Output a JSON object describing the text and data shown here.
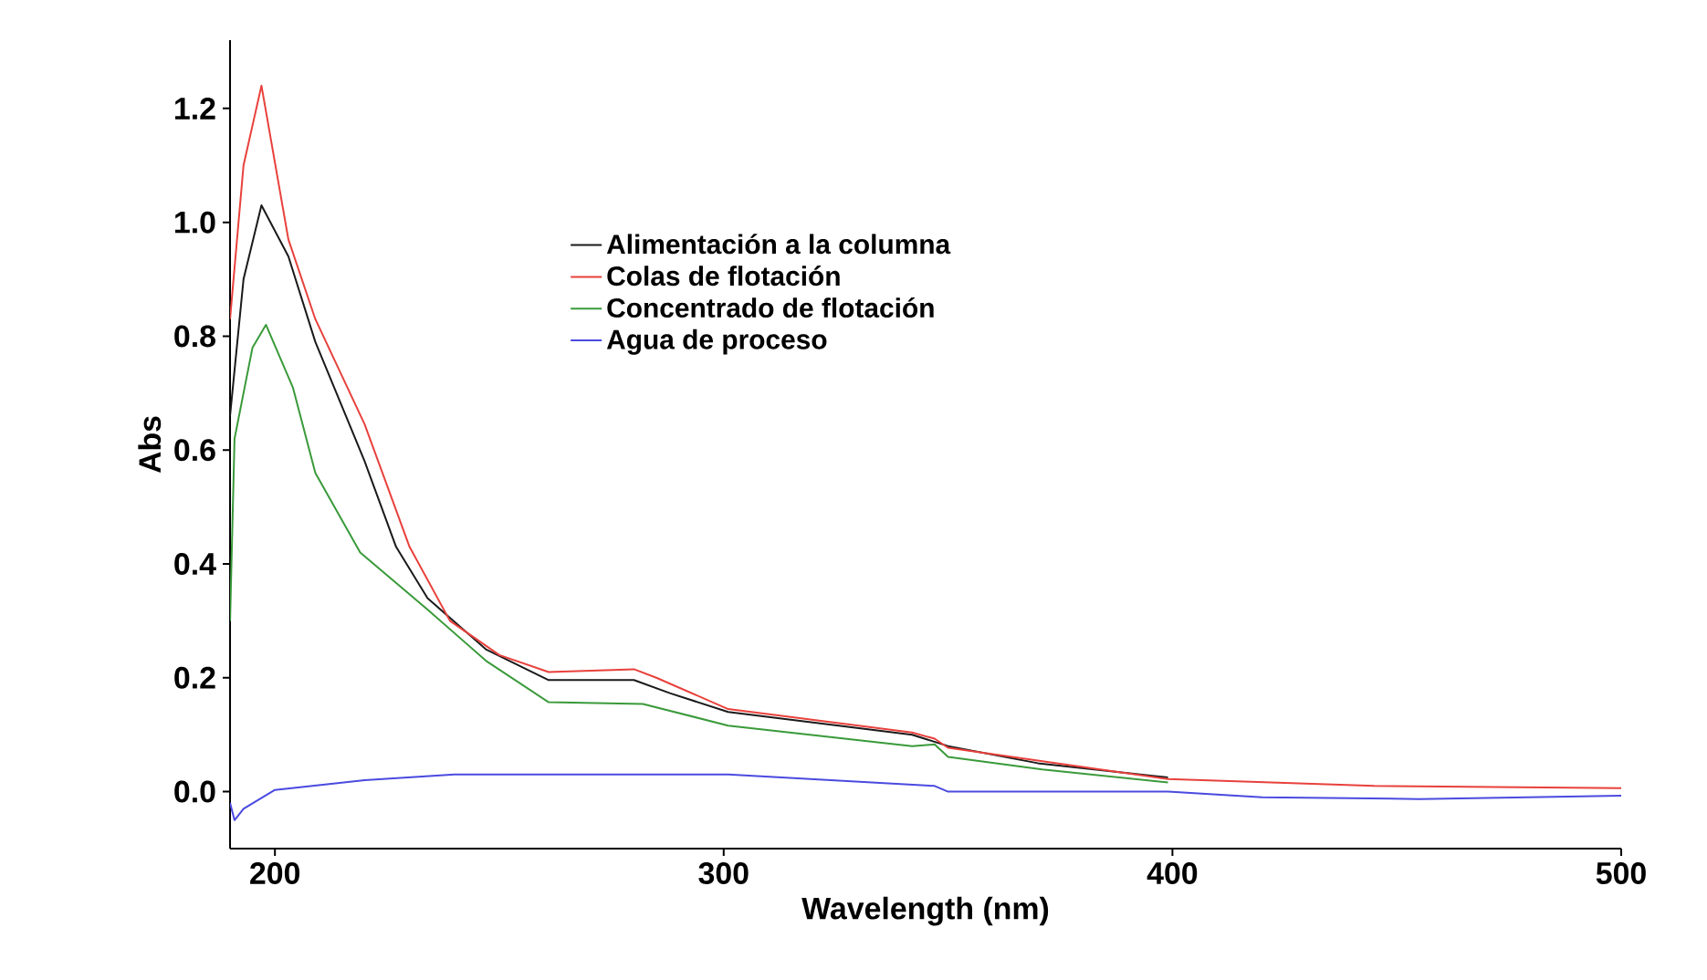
{
  "chart_data": {
    "type": "line",
    "xlabel": "Wavelength (nm)",
    "ylabel": "Abs",
    "xlim": [
      190,
      500
    ],
    "ylim": [
      -0.1,
      1.32
    ],
    "xticks": [
      200,
      300,
      400,
      500
    ],
    "yticks": [
      {
        "value": 0,
        "label": "0.0"
      },
      {
        "value": 0.2,
        "label": "0.2"
      },
      {
        "value": 0.4,
        "label": "0.4"
      },
      {
        "value": 0.6,
        "label": "0.6"
      },
      {
        "value": 0.8,
        "label": "0.8"
      },
      {
        "value": 1.0,
        "label": "1.0"
      },
      {
        "value": 1.2,
        "label": "1.2"
      }
    ],
    "legend": "center",
    "grid": false,
    "marker": "none",
    "line_style": "solid",
    "series": [
      {
        "name": "Alimentación a la columna",
        "color": "#1a1a1a",
        "x": [
          190,
          193,
          197,
          203,
          209,
          220,
          227,
          234,
          247,
          261,
          280,
          288,
          301,
          342,
          350,
          370,
          399
        ],
        "values": [
          0.66,
          0.9,
          1.03,
          0.94,
          0.79,
          0.58,
          0.43,
          0.34,
          0.25,
          0.196,
          0.196,
          0.173,
          0.14,
          0.1,
          0.08,
          0.05,
          0.025
        ]
      },
      {
        "name": "Colas de flotación",
        "color": "#e8413c",
        "x": [
          190,
          193,
          197,
          203,
          209,
          220,
          230,
          239,
          250,
          261,
          280,
          285,
          301,
          342,
          347,
          350,
          399,
          445,
          500
        ],
        "values": [
          0.83,
          1.1,
          1.24,
          0.97,
          0.83,
          0.645,
          0.43,
          0.3,
          0.24,
          0.21,
          0.215,
          0.2,
          0.145,
          0.104,
          0.093,
          0.077,
          0.022,
          0.01,
          0.006
        ]
      },
      {
        "name": "Concentrado de flotación",
        "color": "#3a9a3a",
        "x": [
          190,
          191,
          195,
          198,
          204,
          209,
          219,
          234,
          247,
          261,
          282,
          301,
          342,
          347,
          350,
          371,
          399
        ],
        "values": [
          0.3,
          0.62,
          0.78,
          0.82,
          0.71,
          0.56,
          0.42,
          0.32,
          0.23,
          0.157,
          0.154,
          0.116,
          0.08,
          0.083,
          0.061,
          0.039,
          0.016
        ]
      },
      {
        "name": "Agua de proceso",
        "color": "#4a4ae0",
        "x": [
          190,
          191,
          193,
          200,
          220,
          240,
          301,
          347,
          350,
          399,
          420,
          455,
          500
        ],
        "values": [
          -0.02,
          -0.05,
          -0.03,
          0.003,
          0.02,
          0.03,
          0.03,
          0.01,
          0.0,
          0.0,
          -0.01,
          -0.013,
          -0.007
        ]
      }
    ]
  }
}
